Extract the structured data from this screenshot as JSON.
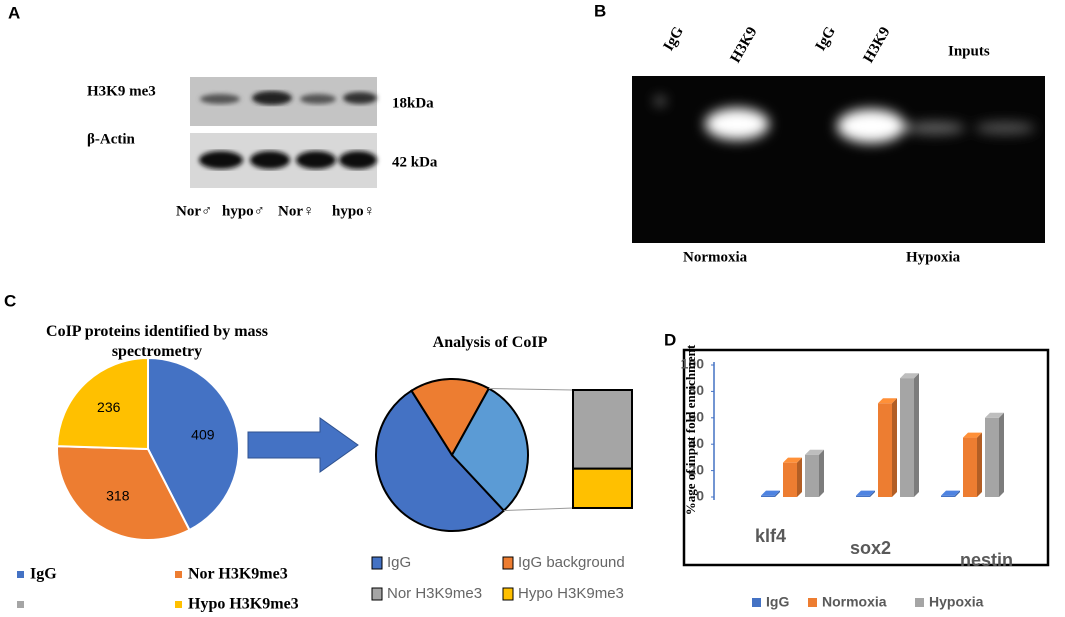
{
  "panels": {
    "A": {
      "letter": "A",
      "rows": [
        "H3K9 me3",
        "β-Actin"
      ],
      "sizes": [
        "18kDa",
        "42 kDa"
      ],
      "lanes": [
        "Nor♂",
        "hypo♂",
        "Nor♀",
        "hypo♀"
      ]
    },
    "B": {
      "letter": "B",
      "lanes": [
        "IgG",
        "H3K9",
        "IgG",
        "H3K9",
        "Inputs"
      ],
      "conditions": [
        "Normoxia",
        "Hypoxia"
      ]
    },
    "C": {
      "letter": "C"
    },
    "D": {
      "letter": "D"
    }
  },
  "chart_data": [
    {
      "type": "pie",
      "title": "CoIP proteins identified by mass spectrometry",
      "categories": [
        "IgG",
        "Nor H3K9me3",
        "Hypo H3K9me3"
      ],
      "values": [
        409,
        318,
        236
      ],
      "colors": [
        "#4472c4",
        "#ed7d31",
        "#ffc000"
      ],
      "legend": "bottom"
    },
    {
      "type": "bar-of-pie",
      "title": "Analysis of CoIP",
      "categories": [
        "IgG",
        "IgG background",
        "Nor H3K9me3",
        "Hypo H3K9me3"
      ],
      "values": [
        53,
        17,
        20,
        10
      ],
      "colors": [
        "#4472c4",
        "#ed7d31",
        "#a5a5a5",
        "#ffc000"
      ],
      "other_color": "#5b9bd5",
      "legend": "bottom"
    },
    {
      "type": "bar",
      "ylabel": "%age of input fold enrichment",
      "categories": [
        "klf4",
        "sox2",
        "nestin"
      ],
      "series": [
        {
          "name": "IgG",
          "color": "#4472c4",
          "values": [
            1,
            1,
            1
          ]
        },
        {
          "name": "Normoxia",
          "color": "#ed7d31",
          "values": [
            26,
            71,
            45
          ]
        },
        {
          "name": "Hypoxia",
          "color": "#a5a5a5",
          "values": [
            32,
            90,
            60
          ]
        }
      ],
      "ylim": [
        0,
        100
      ],
      "yticks": [
        0,
        20,
        40,
        60,
        80,
        100
      ],
      "legend": "bottom"
    }
  ]
}
